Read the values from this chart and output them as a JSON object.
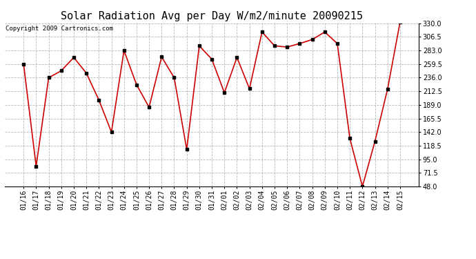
{
  "title": "Solar Radiation Avg per Day W/m2/minute 20090215",
  "copyright": "Copyright 2009 Cartronics.com",
  "dates": [
    "01/16",
    "01/17",
    "01/18",
    "01/19",
    "01/20",
    "01/21",
    "01/22",
    "01/23",
    "01/24",
    "01/25",
    "01/26",
    "01/27",
    "01/28",
    "01/29",
    "01/30",
    "01/31",
    "02/01",
    "02/02",
    "02/03",
    "02/04",
    "02/05",
    "02/06",
    "02/07",
    "02/08",
    "02/09",
    "02/10",
    "02/11",
    "02/12",
    "02/13",
    "02/14",
    "02/15"
  ],
  "values": [
    259.5,
    83.0,
    236.0,
    248.0,
    271.0,
    244.0,
    197.5,
    142.0,
    283.0,
    224.0,
    185.0,
    272.0,
    236.0,
    112.0,
    291.0,
    268.0,
    210.0,
    271.0,
    217.0,
    315.0,
    291.0,
    289.0,
    295.0,
    302.0,
    315.0,
    295.0,
    131.0,
    48.0,
    126.0,
    216.0,
    332.0
  ],
  "ylim": [
    48.0,
    330.0
  ],
  "yticks": [
    48.0,
    71.5,
    95.0,
    118.5,
    142.0,
    165.5,
    189.0,
    212.5,
    236.0,
    259.5,
    283.0,
    306.5,
    330.0
  ],
  "line_color": "#cc0000",
  "marker_color": "#000000",
  "bg_color": "#ffffff",
  "grid_color": "#999999",
  "title_fontsize": 11,
  "copyright_fontsize": 6.5,
  "tick_fontsize": 7
}
